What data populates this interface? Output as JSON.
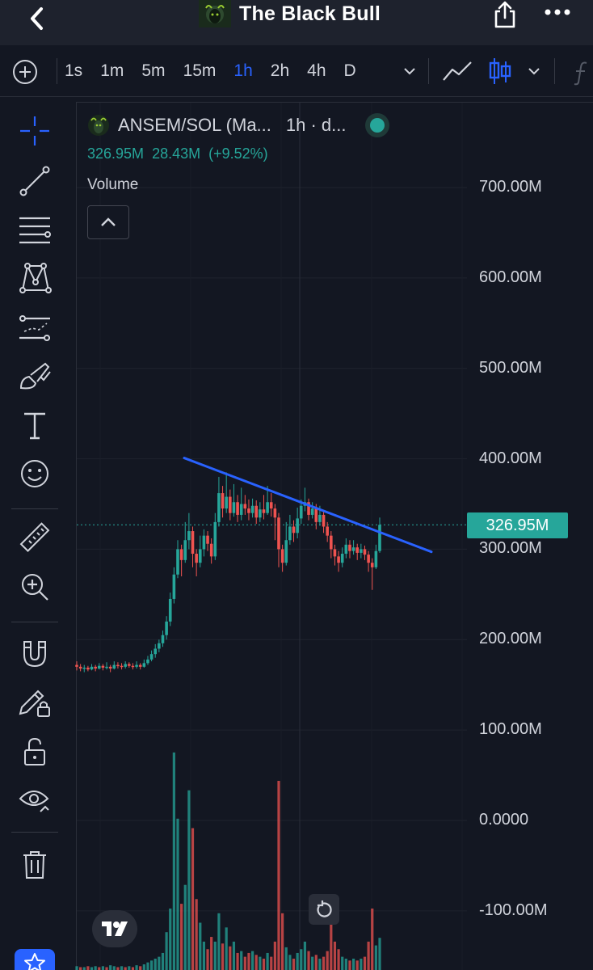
{
  "app_bar": {
    "title": "The Black Bull",
    "icons": [
      "chevron-left-icon",
      "bull-logo-icon",
      "share-icon",
      "more-icon"
    ]
  },
  "toolbar": {
    "intervals": [
      "1s",
      "1m",
      "5m",
      "15m",
      "1h",
      "2h",
      "4h",
      "D"
    ],
    "active_interval": "1h",
    "icons": [
      "plus-circle-icon",
      "chevron-down-icon",
      "line-chart-icon",
      "candles-icon",
      "chevron-down-icon",
      "function-icon"
    ]
  },
  "left_tools": [
    "crosshair-icon",
    "trend-line-icon",
    "fib-retracement-icon",
    "pattern-icon",
    "prediction-icon",
    "brush-icon",
    "text-icon",
    "emoji-icon",
    "ruler-icon",
    "zoom-in-icon",
    "magnet-icon",
    "lock-drawing-icon",
    "unlock-icon",
    "eye-icon",
    "trash-icon",
    "star-icon"
  ],
  "legend": {
    "symbol": "ANSEM/SOL (Ma...",
    "interval": "1h · d...",
    "close": "326.95M",
    "change": "28.43M",
    "change_pct": "(+9.52%)"
  },
  "volume_label": "Volume",
  "last_price": "326.95M",
  "colors": {
    "background": "#131722",
    "up": "#26a69a",
    "down": "#ef5350",
    "trendline": "#2962ff",
    "accent": "#2962ff"
  },
  "chart_data": {
    "type": "candlestick",
    "ylim": [
      -150000000,
      760000000
    ],
    "y_ticks": [
      "700.00M",
      "600.00M",
      "500.00M",
      "400.00M",
      "300.00M",
      "200.00M",
      "100.00M",
      "0.0000",
      "-100.00M"
    ],
    "y_tick_values": [
      700,
      600,
      500,
      400,
      300,
      200,
      100,
      0,
      -100
    ],
    "unit": "M",
    "last": 326.95,
    "candles": [
      [
        172,
        170,
        176,
        166
      ],
      [
        170,
        168,
        173,
        165
      ],
      [
        168,
        169,
        172,
        164
      ],
      [
        169,
        167,
        171,
        165
      ],
      [
        167,
        170,
        173,
        166
      ],
      [
        170,
        168,
        172,
        165
      ],
      [
        168,
        171,
        174,
        167
      ],
      [
        171,
        169,
        173,
        166
      ],
      [
        169,
        170,
        175,
        167
      ],
      [
        170,
        168,
        172,
        164
      ],
      [
        168,
        172,
        176,
        167
      ],
      [
        172,
        171,
        175,
        168
      ],
      [
        171,
        170,
        174,
        167
      ],
      [
        170,
        173,
        176,
        168
      ],
      [
        173,
        171,
        175,
        169
      ],
      [
        171,
        170,
        174,
        167
      ],
      [
        170,
        172,
        176,
        168
      ],
      [
        172,
        170,
        174,
        167
      ],
      [
        170,
        174,
        178,
        169
      ],
      [
        174,
        178,
        182,
        172
      ],
      [
        178,
        184,
        188,
        176
      ],
      [
        184,
        190,
        195,
        180
      ],
      [
        190,
        196,
        200,
        186
      ],
      [
        196,
        205,
        210,
        192
      ],
      [
        205,
        220,
        226,
        200
      ],
      [
        220,
        245,
        252,
        215
      ],
      [
        245,
        272,
        280,
        240
      ],
      [
        272,
        300,
        310,
        268
      ],
      [
        300,
        288,
        305,
        270
      ],
      [
        288,
        310,
        330,
        285
      ],
      [
        310,
        320,
        340,
        300
      ],
      [
        320,
        295,
        325,
        280
      ],
      [
        295,
        285,
        300,
        270
      ],
      [
        285,
        300,
        315,
        280
      ],
      [
        300,
        315,
        322,
        292
      ],
      [
        315,
        306,
        320,
        298
      ],
      [
        306,
        292,
        312,
        284
      ],
      [
        292,
        330,
        340,
        288
      ],
      [
        330,
        362,
        380,
        325
      ],
      [
        362,
        345,
        370,
        335
      ],
      [
        345,
        358,
        385,
        340
      ],
      [
        358,
        340,
        366,
        332
      ],
      [
        340,
        352,
        372,
        336
      ],
      [
        352,
        338,
        360,
        330
      ],
      [
        338,
        350,
        368,
        332
      ],
      [
        350,
        345,
        360,
        338
      ],
      [
        345,
        340,
        355,
        332
      ],
      [
        340,
        348,
        356,
        335
      ],
      [
        348,
        335,
        354,
        328
      ],
      [
        335,
        344,
        352,
        330
      ],
      [
        344,
        340,
        360,
        333
      ],
      [
        340,
        352,
        370,
        338
      ],
      [
        352,
        345,
        362,
        336
      ],
      [
        345,
        335,
        350,
        310
      ],
      [
        335,
        300,
        340,
        280
      ],
      [
        300,
        285,
        305,
        275
      ],
      [
        285,
        310,
        330,
        282
      ],
      [
        310,
        325,
        338,
        305
      ],
      [
        325,
        318,
        332,
        308
      ],
      [
        318,
        334,
        346,
        312
      ],
      [
        334,
        348,
        355,
        328
      ],
      [
        348,
        352,
        368,
        342
      ],
      [
        352,
        338,
        356,
        332
      ],
      [
        338,
        345,
        352,
        334
      ],
      [
        345,
        330,
        350,
        322
      ],
      [
        330,
        338,
        348,
        326
      ],
      [
        338,
        325,
        342,
        318
      ],
      [
        325,
        315,
        330,
        308
      ],
      [
        315,
        300,
        320,
        290
      ],
      [
        300,
        292,
        305,
        282
      ],
      [
        292,
        285,
        298,
        275
      ],
      [
        285,
        295,
        302,
        280
      ],
      [
        295,
        305,
        312,
        290
      ],
      [
        305,
        298,
        310,
        290
      ],
      [
        298,
        302,
        310,
        294
      ],
      [
        302,
        296,
        306,
        288
      ],
      [
        296,
        300,
        306,
        290
      ],
      [
        300,
        294,
        304,
        288
      ],
      [
        294,
        285,
        298,
        275
      ],
      [
        285,
        280,
        290,
        255
      ],
      [
        280,
        298,
        305,
        278
      ],
      [
        298,
        326.95,
        335,
        296
      ]
    ],
    "volume": [
      [
        4,
        "u"
      ],
      [
        3,
        "d"
      ],
      [
        3,
        "u"
      ],
      [
        4,
        "d"
      ],
      [
        3,
        "u"
      ],
      [
        4,
        "u"
      ],
      [
        3,
        "d"
      ],
      [
        4,
        "u"
      ],
      [
        3,
        "d"
      ],
      [
        5,
        "u"
      ],
      [
        4,
        "u"
      ],
      [
        3,
        "d"
      ],
      [
        4,
        "u"
      ],
      [
        3,
        "d"
      ],
      [
        4,
        "u"
      ],
      [
        3,
        "d"
      ],
      [
        5,
        "u"
      ],
      [
        4,
        "d"
      ],
      [
        6,
        "u"
      ],
      [
        8,
        "u"
      ],
      [
        10,
        "u"
      ],
      [
        12,
        "u"
      ],
      [
        14,
        "u"
      ],
      [
        18,
        "u"
      ],
      [
        40,
        "u"
      ],
      [
        65,
        "u"
      ],
      [
        230,
        "u"
      ],
      [
        160,
        "u"
      ],
      [
        70,
        "d"
      ],
      [
        90,
        "u"
      ],
      [
        190,
        "u"
      ],
      [
        150,
        "d"
      ],
      [
        75,
        "d"
      ],
      [
        50,
        "u"
      ],
      [
        30,
        "u"
      ],
      [
        22,
        "d"
      ],
      [
        35,
        "d"
      ],
      [
        30,
        "u"
      ],
      [
        60,
        "u"
      ],
      [
        28,
        "d"
      ],
      [
        45,
        "u"
      ],
      [
        25,
        "d"
      ],
      [
        30,
        "u"
      ],
      [
        18,
        "d"
      ],
      [
        20,
        "u"
      ],
      [
        14,
        "d"
      ],
      [
        18,
        "d"
      ],
      [
        20,
        "u"
      ],
      [
        16,
        "d"
      ],
      [
        14,
        "u"
      ],
      [
        12,
        "d"
      ],
      [
        18,
        "u"
      ],
      [
        14,
        "d"
      ],
      [
        30,
        "d"
      ],
      [
        200,
        "d"
      ],
      [
        60,
        "d"
      ],
      [
        24,
        "u"
      ],
      [
        16,
        "u"
      ],
      [
        12,
        "d"
      ],
      [
        18,
        "u"
      ],
      [
        22,
        "u"
      ],
      [
        30,
        "u"
      ],
      [
        20,
        "d"
      ],
      [
        14,
        "u"
      ],
      [
        16,
        "d"
      ],
      [
        12,
        "u"
      ],
      [
        14,
        "d"
      ],
      [
        20,
        "d"
      ],
      [
        55,
        "d"
      ],
      [
        30,
        "d"
      ],
      [
        22,
        "d"
      ],
      [
        14,
        "u"
      ],
      [
        12,
        "u"
      ],
      [
        10,
        "d"
      ],
      [
        12,
        "u"
      ],
      [
        10,
        "d"
      ],
      [
        12,
        "u"
      ],
      [
        14,
        "d"
      ],
      [
        30,
        "d"
      ],
      [
        65,
        "d"
      ],
      [
        26,
        "u"
      ],
      [
        34,
        "u"
      ]
    ],
    "trendline": [
      [
        400
      ],
      [
        298
      ]
    ]
  }
}
